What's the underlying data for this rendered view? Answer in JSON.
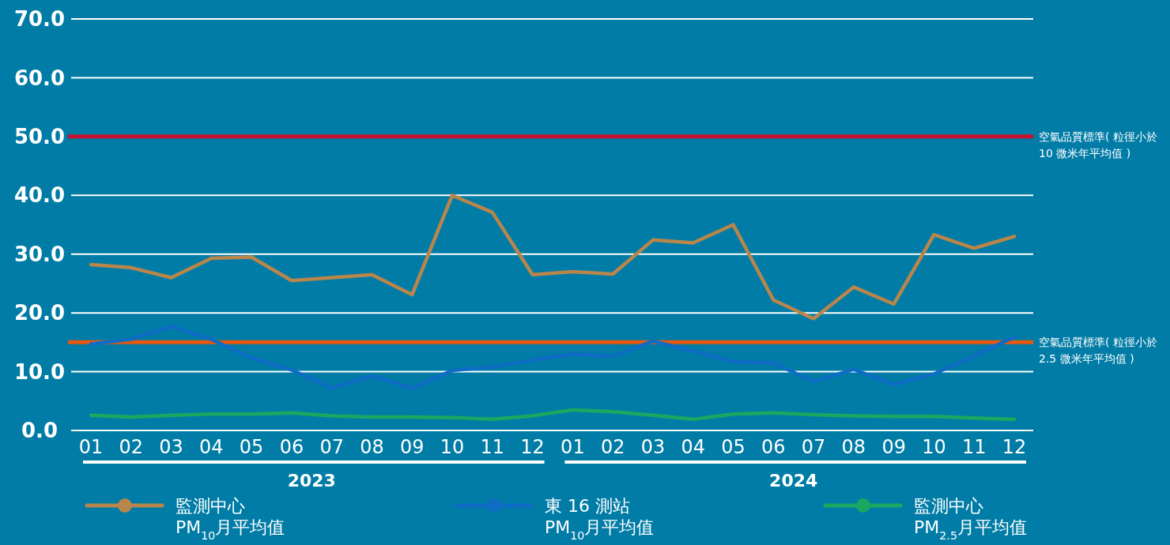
{
  "chart_data": {
    "type": "line",
    "categories": [
      "01",
      "02",
      "03",
      "04",
      "05",
      "06",
      "07",
      "08",
      "09",
      "10",
      "11",
      "12",
      "01",
      "02",
      "03",
      "04",
      "05",
      "06",
      "07",
      "08",
      "09",
      "10",
      "11",
      "12"
    ],
    "series": [
      {
        "name": "監測中心\nPM$_{10}$月平均值",
        "color": "#b8864b",
        "values": [
          28.2,
          27.7,
          26.0,
          29.3,
          29.5,
          25.5,
          26.0,
          26.5,
          23.1,
          40.0,
          37.1,
          26.5,
          27.0,
          26.6,
          32.4,
          31.9,
          35.0,
          22.2,
          19.0,
          24.4,
          21.5,
          33.3,
          31.0,
          33.0
        ]
      },
      {
        "name": "東 16 測站\nPM$_{10}$月平均值",
        "color": "#0e6cc4",
        "values": [
          14.7,
          15.5,
          17.7,
          15.5,
          12.3,
          10.3,
          7.2,
          9.3,
          7.2,
          10.2,
          10.8,
          12.0,
          13.0,
          12.6,
          15.2,
          13.5,
          11.7,
          11.5,
          8.3,
          10.4,
          7.8,
          9.6,
          12.7,
          15.9
        ]
      },
      {
        "name": "監測中心\nPM$_{2.5}$月平均值",
        "color": "#1aa860",
        "values": [
          2.6,
          2.3,
          2.6,
          2.8,
          2.8,
          3.0,
          2.5,
          2.3,
          2.3,
          2.2,
          1.9,
          2.5,
          3.5,
          3.2,
          2.6,
          1.9,
          2.8,
          3.0,
          2.7,
          2.5,
          2.4,
          2.4,
          2.1,
          1.9
        ]
      }
    ],
    "ylim": [
      0,
      70
    ],
    "yticks": [
      {
        "value": 0,
        "label": "0.0"
      },
      {
        "value": 10,
        "label": "10.0"
      },
      {
        "value": 20,
        "label": "20.0"
      },
      {
        "value": 30,
        "label": "30.0"
      },
      {
        "value": 40,
        "label": "40.0"
      },
      {
        "value": 50,
        "label": "50.0"
      },
      {
        "value": 60,
        "label": "60.0"
      },
      {
        "value": 70,
        "label": "70.0"
      }
    ],
    "grid": "y",
    "ref_lines": [
      {
        "axis": "y",
        "value": 50,
        "label": "空氣品質標準( 粒徑小於 10 微米年平均值 )",
        "color": "#c8102e"
      },
      {
        "axis": "y",
        "value": 15,
        "label": "空氣品質標準( 粒徑小於 2.5 微米年平均值 )",
        "color": "#e8580f"
      }
    ],
    "annotations": [
      "2023",
      "2024"
    ],
    "legend": "bottom",
    "line_style": "solid"
  }
}
